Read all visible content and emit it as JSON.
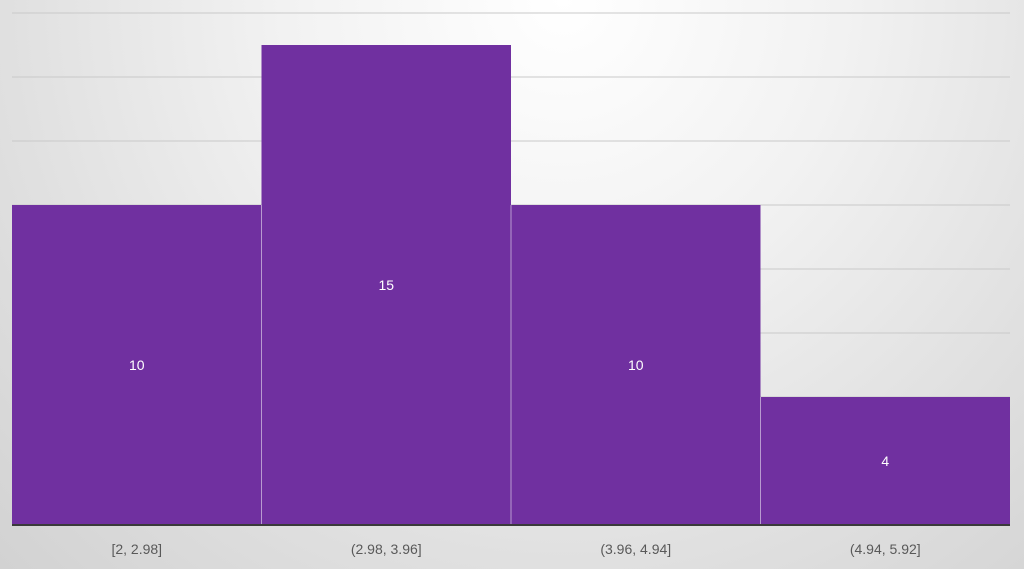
{
  "chart_data": {
    "type": "bar",
    "categories": [
      "[2, 2.98]",
      "(2.98, 3.96]",
      "(3.96, 4.94]",
      "(4.94, 5.92]"
    ],
    "values": [
      10,
      15,
      10,
      4
    ],
    "data_labels": [
      "10",
      "15",
      "10",
      "4"
    ],
    "title": "",
    "xlabel": "",
    "ylabel": "",
    "ylim": [
      0,
      16
    ],
    "grid": true,
    "legend": "none",
    "bar_color": "#7030a0",
    "gap_width": 0
  }
}
